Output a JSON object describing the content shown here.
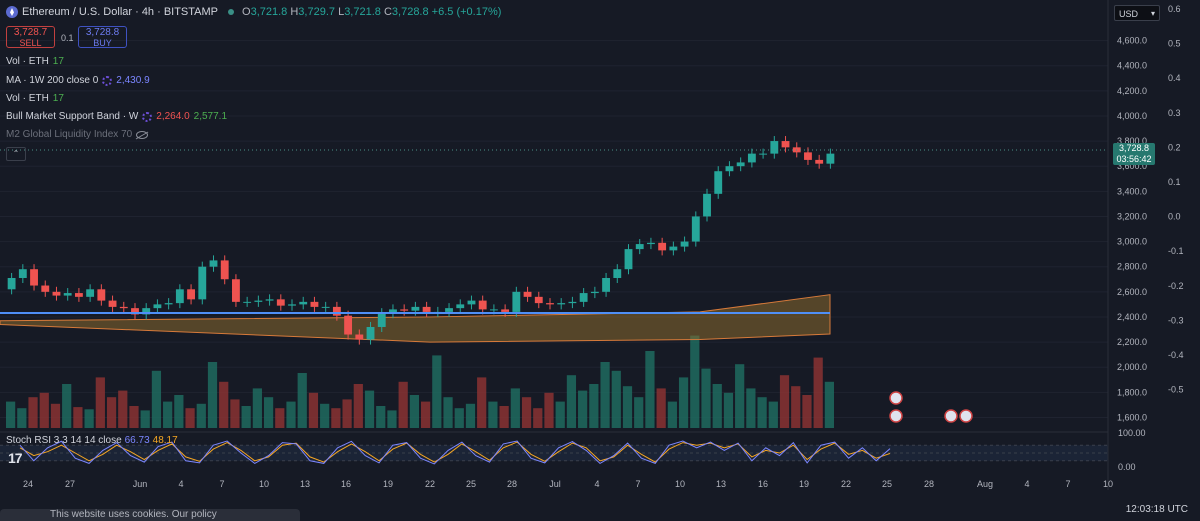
{
  "header": {
    "symbol": "Ethereum / U.S. Dollar · 4h · BITSTAMP",
    "o_label": "O",
    "o_val": "3,721.8",
    "h_label": "H",
    "h_val": "3,729.7",
    "l_label": "L",
    "l_val": "3,721.8",
    "c_label": "C",
    "c_val": "3,728.8",
    "change": "+6.5 (+0.17%)"
  },
  "trade": {
    "sell_price": "3,728.7",
    "sell_label": "SELL",
    "spread": "0.1",
    "buy_price": "3,728.8",
    "buy_label": "BUY"
  },
  "indicators": [
    {
      "name": "Vol · ETH",
      "value": "17"
    },
    {
      "name": "MA · 1W 200 close 0",
      "value": "2,430.9"
    },
    {
      "name": "Vol · ETH",
      "value": "17"
    },
    {
      "name": "Bull Market Support Band · W",
      "value1": "2,264.0",
      "value2": "2,577.1"
    },
    {
      "name": "M2 Global Liquidity Index 70"
    }
  ],
  "currency": "USD",
  "price_axis": [
    "4,600.0",
    "4,400.0",
    "4,200.0",
    "4,000.0",
    "3,800.0",
    "3,600.0",
    "3,400.0",
    "3,200.0",
    "3,000.0",
    "2,800.0",
    "2,600.0",
    "2,400.0",
    "2,200.0",
    "2,000.0",
    "1,800.0",
    "1,600.0"
  ],
  "secondary_axis": [
    "0.6",
    "0.5",
    "0.4",
    "0.3",
    "0.2",
    "0.1",
    "0.0",
    "-0.1",
    "-0.2",
    "-0.3",
    "-0.4",
    "-0.5"
  ],
  "last_price": {
    "price": "3,728.8",
    "countdown": "03:56:42"
  },
  "stoch_rsi": {
    "label": "Stoch RSI 3 3 14 14 close",
    "k": "66.73",
    "d": "48.17",
    "axis": [
      "100.00",
      "0.00"
    ]
  },
  "time_axis": [
    "24",
    "27",
    "Jun",
    "4",
    "7",
    "10",
    "13",
    "16",
    "19",
    "22",
    "25",
    "28",
    "Jul",
    "4",
    "7",
    "10",
    "13",
    "16",
    "19",
    "22",
    "25",
    "28",
    "Aug",
    "4",
    "7",
    "10"
  ],
  "footer": {
    "time": "12:03:18 UTC",
    "cookie_text": "This website uses cookies. Our policy"
  },
  "colors": {
    "up": "#26a69a",
    "down": "#ef5350",
    "ma": "#4f8ff7",
    "band_fill": "#8b6a2e",
    "k_line": "#7b86ff",
    "d_line": "#f5a623"
  },
  "chart_data": {
    "type": "candlestick",
    "ylim": [
      1500,
      4700
    ],
    "close": [
      2710,
      2780,
      2650,
      2600,
      2570,
      2590,
      2560,
      2620,
      2530,
      2480,
      2470,
      2420,
      2470,
      2500,
      2510,
      2620,
      2540,
      2800,
      2850,
      2700,
      2520,
      2520,
      2530,
      2540,
      2490,
      2500,
      2520,
      2480,
      2480,
      2410,
      2260,
      2220,
      2320,
      2430,
      2460,
      2450,
      2480,
      2440,
      2440,
      2470,
      2500,
      2530,
      2460,
      2460,
      2440,
      2600,
      2560,
      2510,
      2500,
      2510,
      2520,
      2590,
      2600,
      2710,
      2780,
      2940,
      2980,
      2990,
      2930,
      2960,
      3000,
      3200,
      3380,
      3560,
      3600,
      3630,
      3700,
      3700,
      3800,
      3750,
      3710,
      3650,
      3620,
      3700
    ],
    "ma_1w_200": 2430.9,
    "band_lower_start": 2340,
    "band_lower_end": 2264.0,
    "band_upper_start": 2370,
    "band_upper_end": 2577.1,
    "volume": [
      120,
      90,
      140,
      160,
      110,
      200,
      95,
      85,
      230,
      140,
      170,
      100,
      80,
      260,
      120,
      150,
      90,
      110,
      300,
      210,
      130,
      100,
      180,
      140,
      90,
      120,
      250,
      160,
      110,
      90,
      130,
      200,
      170,
      100,
      80,
      210,
      150,
      120,
      330,
      140,
      90,
      110,
      230,
      120,
      100,
      180,
      140,
      90,
      160,
      120,
      240,
      170,
      200,
      300,
      260,
      190,
      140,
      350,
      180,
      120,
      230,
      420,
      270,
      200,
      160,
      290,
      180,
      140,
      120,
      240,
      190,
      150,
      320,
      210
    ],
    "stoch_k": [
      80,
      20,
      70,
      95,
      30,
      10,
      60,
      90,
      40,
      15,
      75,
      92,
      20,
      12,
      80,
      96,
      50,
      10,
      40,
      90,
      85,
      20,
      10,
      70,
      95,
      40,
      12,
      80,
      90,
      30,
      8,
      60,
      92,
      40,
      15,
      85,
      96,
      30,
      12,
      70,
      94,
      60,
      10,
      40,
      88,
      30,
      10,
      80,
      96,
      70,
      92,
      60,
      88,
      20,
      70,
      40,
      90,
      12,
      80,
      92,
      30,
      70,
      20,
      66.73
    ],
    "stoch_d": [
      70,
      40,
      55,
      80,
      50,
      20,
      45,
      80,
      55,
      25,
      60,
      85,
      35,
      18,
      65,
      90,
      60,
      20,
      35,
      80,
      88,
      35,
      15,
      55,
      85,
      55,
      20,
      65,
      88,
      45,
      15,
      45,
      85,
      55,
      22,
      70,
      92,
      45,
      18,
      55,
      88,
      70,
      20,
      35,
      80,
      45,
      15,
      65,
      90,
      80,
      88,
      70,
      85,
      35,
      60,
      50,
      80,
      25,
      65,
      88,
      45,
      60,
      30,
      48.17
    ]
  }
}
